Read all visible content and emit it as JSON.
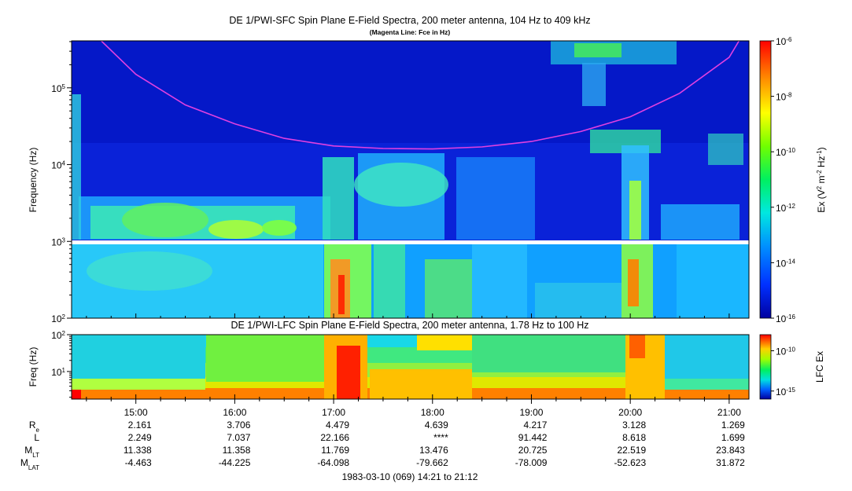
{
  "chart_data": [
    {
      "type": "heatmap",
      "title": "DE 1/PWI-SFC  Spin Plane E-Field Spectra, 200 meter antenna, 104 Hz to 409 kHz",
      "subtitle": "(Magenta Line: Fce in Hz)",
      "ylabel": "Frequency (Hz)",
      "yscale": "log",
      "ylim": [
        100,
        409000
      ],
      "yticks": [
        {
          "base": "10",
          "exp": "2"
        },
        {
          "base": "10",
          "exp": "3"
        },
        {
          "base": "10",
          "exp": "4"
        },
        {
          "base": "10",
          "exp": "5"
        }
      ],
      "colorbar": {
        "label_parts": [
          "Ex (V",
          "2",
          " m",
          "-2",
          " Hz",
          "-1",
          ")"
        ],
        "scale": "log",
        "range": [
          1e-16,
          1e-06
        ],
        "ticks": [
          {
            "base": "10",
            "exp": "-6"
          },
          {
            "base": "10",
            "exp": "-8"
          },
          {
            "base": "10",
            "exp": "-10"
          },
          {
            "base": "10",
            "exp": "-12"
          },
          {
            "base": "10",
            "exp": "-14"
          },
          {
            "base": "10",
            "exp": "-16"
          }
        ]
      },
      "fce_curve": {
        "color": "#e040e0",
        "points": [
          [
            14.65,
            409000
          ],
          [
            15.0,
            150000
          ],
          [
            15.5,
            60000
          ],
          [
            16.0,
            34000
          ],
          [
            16.5,
            22000
          ],
          [
            17.0,
            17500
          ],
          [
            17.5,
            16200
          ],
          [
            18.0,
            16000
          ],
          [
            18.5,
            17000
          ],
          [
            19.0,
            20000
          ],
          [
            19.5,
            27000
          ],
          [
            20.0,
            42000
          ],
          [
            20.5,
            85000
          ],
          [
            21.0,
            250000
          ],
          [
            21.1,
            409000
          ]
        ]
      }
    },
    {
      "type": "heatmap",
      "title": "DE 1/PWI-LFC  Spin Plane E-Field Spectra, 200 meter antenna, 1.78 Hz to 100 Hz",
      "ylabel": "Freq (Hz)",
      "yscale": "log",
      "ylim": [
        1.78,
        100
      ],
      "yticks": [
        {
          "base": "10",
          "exp": "1"
        },
        {
          "base": "10",
          "exp": "2"
        }
      ],
      "colorbar": {
        "label": "LFC Ex",
        "scale": "log",
        "range": [
          1e-16,
          1e-08
        ],
        "ticks": [
          {
            "base": "10",
            "exp": "-10"
          },
          {
            "base": "10",
            "exp": "-15"
          }
        ]
      }
    }
  ],
  "time_axis": {
    "start_hour": 14.35,
    "end_hour": 21.2,
    "tick_labels": [
      "15:00",
      "16:00",
      "17:00",
      "18:00",
      "19:00",
      "20:00",
      "21:00"
    ],
    "tick_hours": [
      15,
      16,
      17,
      18,
      19,
      20,
      21
    ]
  },
  "ephemeris": {
    "rows": [
      {
        "label": "R",
        "sub": "e",
        "values": [
          "2.161",
          "3.706",
          "4.479",
          "4.639",
          "4.217",
          "3.128",
          "1.269"
        ]
      },
      {
        "label": "L",
        "sub": "",
        "values": [
          "2.249",
          "7.037",
          "22.166",
          "****",
          "91.442",
          "8.618",
          "1.699"
        ]
      },
      {
        "label": "M",
        "sub": "LT",
        "values": [
          "11.338",
          "11.358",
          "11.769",
          "13.476",
          "20.725",
          "22.519",
          "23.843"
        ]
      },
      {
        "label": "M",
        "sub": "LAT",
        "values": [
          "-4.463",
          "-44.225",
          "-64.098",
          "-79.662",
          "-78.009",
          "-52.623",
          "31.872"
        ]
      }
    ]
  },
  "footer": "1983-03-10 (069) 14:21 to 21:12"
}
